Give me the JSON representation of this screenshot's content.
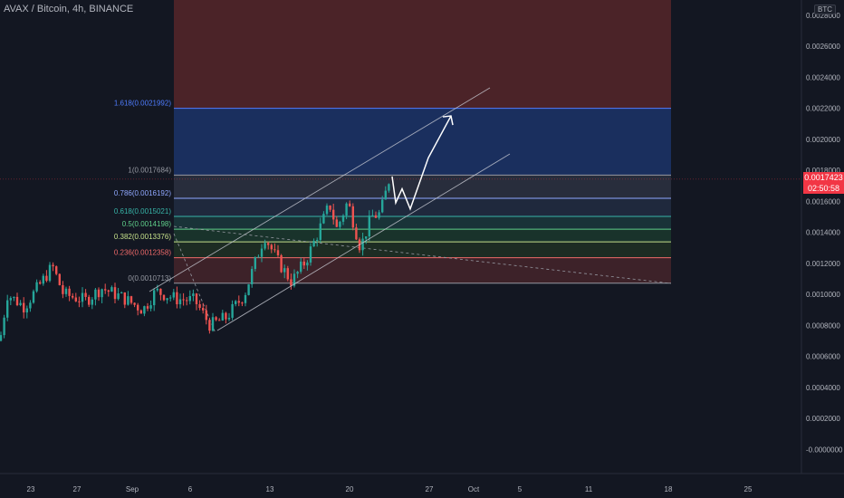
{
  "symbol": "AVAX / Bitcoin, 4h, BINANCE",
  "currency": "BTC",
  "price_tag": {
    "price": "0.0017423",
    "countdown": "02:50:58",
    "color": "#f23645"
  },
  "colors": {
    "background": "#131722",
    "up": "#26a69a",
    "down": "#ef5350",
    "axis_text": "#b2b5be",
    "channel": "#c8cbd3",
    "zone_red": "#7a2e2e",
    "zone_blue": "#1e3a78"
  },
  "chart_data": {
    "type": "candlestick",
    "yaxis": {
      "ticks": [
        "0.0028000",
        "0.0026000",
        "0.0024000",
        "0.0022000",
        "0.0020000",
        "0.0018000",
        "0.0016000",
        "0.0014000",
        "0.0012000",
        "0.0010000",
        "0.0008000",
        "0.0006000",
        "0.0004000",
        "0.0002000",
        "-0.0000000"
      ],
      "ylim": [
        -0.0001,
        0.003
      ]
    },
    "xaxis": {
      "ticks": [
        "23",
        "27",
        "Sep",
        "6",
        "13",
        "20",
        "27",
        "Oct",
        "5",
        "11",
        "18",
        "25"
      ]
    },
    "fib_levels": [
      {
        "label": "1.618(0.0021992)",
        "value": 0.0021992,
        "color": "#4f7dff"
      },
      {
        "label": "1(0.0017684)",
        "value": 0.0017684,
        "color": "#9598a1"
      },
      {
        "label": "0.786(0.0016192)",
        "value": 0.0016192,
        "color": "#90a8ff"
      },
      {
        "label": "0.618(0.0015021)",
        "value": 0.0015021,
        "color": "#37b4a8"
      },
      {
        "label": "0.5(0.0014198)",
        "value": 0.0014198,
        "color": "#5fcf8a"
      },
      {
        "label": "0.382(0.0013376)",
        "value": 0.0013376,
        "color": "#c5e08a"
      },
      {
        "label": "0.236(0.0012358)",
        "value": 0.0012358,
        "color": "#f06a6a"
      },
      {
        "label": "0(0.0010713)",
        "value": 0.0010713,
        "color": "#9598a1"
      }
    ],
    "current_price": 0.0017423,
    "annotations": {
      "projection_path": [
        {
          "date": "Sep 23",
          "price": 0.00176
        },
        {
          "date": "Sep 23",
          "price": 0.00159
        },
        {
          "date": "Sep 24",
          "price": 0.00168
        },
        {
          "date": "Sep 25",
          "price": 0.00155
        },
        {
          "date": "Sep 27",
          "price": 0.00188
        },
        {
          "date": "Sep 28",
          "price": 0.00215
        }
      ]
    }
  }
}
